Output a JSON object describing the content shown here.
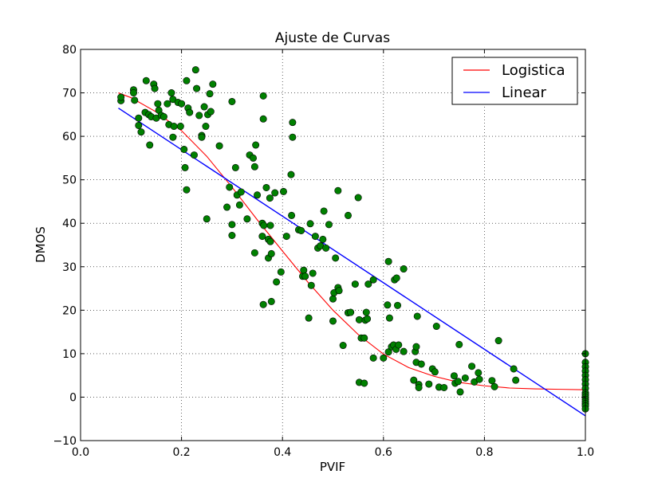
{
  "chart_data": {
    "type": "scatter",
    "title": "Ajuste de Curvas",
    "xlabel": "PVIF",
    "ylabel": "DMOS",
    "xlim": [
      0.0,
      1.0
    ],
    "ylim": [
      -10,
      80
    ],
    "xticks": [
      "0.0",
      "0.2",
      "0.4",
      "0.6",
      "0.8",
      "1.0"
    ],
    "yticks": [
      "−10",
      "0",
      "10",
      "20",
      "30",
      "40",
      "50",
      "60",
      "70",
      "80"
    ],
    "grid": true,
    "legend_position": "top-right",
    "colors": {
      "points": "#008000",
      "logistic": "#ff0000",
      "linear": "#0000ff"
    },
    "series": [
      {
        "name": "Logistica",
        "kind": "line",
        "x": [
          0.075,
          0.1,
          0.15,
          0.2,
          0.25,
          0.3,
          0.35,
          0.4,
          0.45,
          0.5,
          0.55,
          0.6,
          0.65,
          0.7,
          0.75,
          0.8,
          0.85,
          0.9,
          0.95,
          1.0
        ],
        "y": [
          70.0,
          68.9,
          65.6,
          61.3,
          55.4,
          48.3,
          40.8,
          33.6,
          26.5,
          20.0,
          14.4,
          9.9,
          6.8,
          4.8,
          3.4,
          2.6,
          2.1,
          1.9,
          1.8,
          1.7
        ]
      },
      {
        "name": "Linear",
        "kind": "line",
        "x": [
          0.075,
          1.0
        ],
        "y": [
          66.5,
          -4.3
        ]
      },
      {
        "name": "",
        "kind": "scatter",
        "points": [
          [
            0.08,
            68.2
          ],
          [
            0.08,
            69.0
          ],
          [
            0.105,
            70.7
          ],
          [
            0.105,
            70.0
          ],
          [
            0.107,
            68.3
          ],
          [
            0.115,
            64.2
          ],
          [
            0.115,
            62.5
          ],
          [
            0.12,
            61.0
          ],
          [
            0.13,
            72.8
          ],
          [
            0.128,
            65.5
          ],
          [
            0.135,
            65.0
          ],
          [
            0.137,
            58.0
          ],
          [
            0.14,
            64.5
          ],
          [
            0.145,
            72.0
          ],
          [
            0.147,
            71.0
          ],
          [
            0.15,
            64.2
          ],
          [
            0.153,
            67.5
          ],
          [
            0.155,
            66.0
          ],
          [
            0.16,
            64.8
          ],
          [
            0.165,
            64.5
          ],
          [
            0.172,
            67.5
          ],
          [
            0.175,
            62.7
          ],
          [
            0.18,
            70.0
          ],
          [
            0.183,
            68.5
          ],
          [
            0.183,
            59.8
          ],
          [
            0.185,
            62.3
          ],
          [
            0.193,
            67.8
          ],
          [
            0.198,
            62.3
          ],
          [
            0.2,
            67.5
          ],
          [
            0.205,
            57.0
          ],
          [
            0.207,
            52.8
          ],
          [
            0.21,
            72.8
          ],
          [
            0.21,
            47.7
          ],
          [
            0.213,
            66.5
          ],
          [
            0.216,
            65.5
          ],
          [
            0.225,
            55.7
          ],
          [
            0.228,
            75.3
          ],
          [
            0.23,
            71.0
          ],
          [
            0.235,
            64.8
          ],
          [
            0.24,
            60.2
          ],
          [
            0.24,
            59.8
          ],
          [
            0.245,
            66.8
          ],
          [
            0.248,
            62.3
          ],
          [
            0.25,
            41.0
          ],
          [
            0.252,
            65.0
          ],
          [
            0.256,
            69.8
          ],
          [
            0.258,
            65.7
          ],
          [
            0.262,
            72.0
          ],
          [
            0.275,
            57.8
          ],
          [
            0.29,
            43.7
          ],
          [
            0.295,
            48.3
          ],
          [
            0.3,
            68.0
          ],
          [
            0.3,
            39.7
          ],
          [
            0.3,
            37.2
          ],
          [
            0.307,
            52.8
          ],
          [
            0.31,
            46.5
          ],
          [
            0.315,
            44.2
          ],
          [
            0.318,
            47.2
          ],
          [
            0.33,
            41.0
          ],
          [
            0.335,
            55.7
          ],
          [
            0.342,
            55.0
          ],
          [
            0.345,
            53.0
          ],
          [
            0.347,
            58.0
          ],
          [
            0.345,
            33.2
          ],
          [
            0.35,
            46.5
          ],
          [
            0.36,
            40.0
          ],
          [
            0.362,
            69.3
          ],
          [
            0.362,
            64.0
          ],
          [
            0.363,
            39.5
          ],
          [
            0.36,
            37.0
          ],
          [
            0.362,
            21.3
          ],
          [
            0.368,
            48.2
          ],
          [
            0.372,
            36.3
          ],
          [
            0.372,
            32.0
          ],
          [
            0.375,
            45.8
          ],
          [
            0.376,
            39.5
          ],
          [
            0.376,
            35.8
          ],
          [
            0.378,
            33.0
          ],
          [
            0.378,
            22.0
          ],
          [
            0.385,
            47.0
          ],
          [
            0.388,
            26.5
          ],
          [
            0.397,
            28.8
          ],
          [
            0.402,
            47.3
          ],
          [
            0.408,
            37.0
          ],
          [
            0.417,
            51.2
          ],
          [
            0.418,
            41.8
          ],
          [
            0.42,
            63.2
          ],
          [
            0.42,
            59.8
          ],
          [
            0.432,
            38.5
          ],
          [
            0.437,
            38.3
          ],
          [
            0.44,
            27.8
          ],
          [
            0.442,
            29.2
          ],
          [
            0.445,
            27.8
          ],
          [
            0.452,
            18.2
          ],
          [
            0.455,
            39.9
          ],
          [
            0.457,
            25.7
          ],
          [
            0.46,
            28.5
          ],
          [
            0.465,
            37.0
          ],
          [
            0.47,
            34.3
          ],
          [
            0.475,
            34.8
          ],
          [
            0.48,
            36.3
          ],
          [
            0.482,
            42.8
          ],
          [
            0.486,
            34.3
          ],
          [
            0.492,
            39.7
          ],
          [
            0.5,
            22.6
          ],
          [
            0.5,
            17.5
          ],
          [
            0.502,
            24.0
          ],
          [
            0.505,
            32.0
          ],
          [
            0.51,
            47.5
          ],
          [
            0.51,
            25.2
          ],
          [
            0.512,
            24.5
          ],
          [
            0.52,
            11.9
          ],
          [
            0.53,
            19.4
          ],
          [
            0.53,
            41.8
          ],
          [
            0.535,
            19.5
          ],
          [
            0.544,
            26.0
          ],
          [
            0.55,
            45.9
          ],
          [
            0.552,
            17.8
          ],
          [
            0.552,
            3.4
          ],
          [
            0.556,
            13.6
          ],
          [
            0.562,
            13.6
          ],
          [
            0.562,
            3.2
          ],
          [
            0.564,
            17.7
          ],
          [
            0.566,
            19.5
          ],
          [
            0.568,
            18.0
          ],
          [
            0.57,
            26.0
          ],
          [
            0.58,
            27.0
          ],
          [
            0.58,
            9.0
          ],
          [
            0.6,
            9.0
          ],
          [
            0.608,
            21.2
          ],
          [
            0.61,
            31.2
          ],
          [
            0.61,
            10.4
          ],
          [
            0.612,
            18.2
          ],
          [
            0.616,
            11.6
          ],
          [
            0.62,
            12.0
          ],
          [
            0.622,
            27.0
          ],
          [
            0.625,
            11.0
          ],
          [
            0.626,
            27.4
          ],
          [
            0.628,
            21.1
          ],
          [
            0.63,
            12.0
          ],
          [
            0.64,
            29.5
          ],
          [
            0.64,
            10.5
          ],
          [
            0.66,
            3.9
          ],
          [
            0.663,
            10.5
          ],
          [
            0.665,
            11.6
          ],
          [
            0.665,
            8.0
          ],
          [
            0.667,
            18.6
          ],
          [
            0.67,
            2.9
          ],
          [
            0.67,
            2.2
          ],
          [
            0.675,
            7.6
          ],
          [
            0.69,
            3.0
          ],
          [
            0.697,
            6.5
          ],
          [
            0.702,
            5.8
          ],
          [
            0.705,
            16.3
          ],
          [
            0.71,
            2.3
          ],
          [
            0.72,
            2.2
          ],
          [
            0.74,
            4.9
          ],
          [
            0.742,
            3.2
          ],
          [
            0.748,
            3.6
          ],
          [
            0.75,
            12.1
          ],
          [
            0.752,
            1.2
          ],
          [
            0.762,
            4.4
          ],
          [
            0.775,
            7.1
          ],
          [
            0.78,
            3.5
          ],
          [
            0.788,
            5.6
          ],
          [
            0.79,
            4.1
          ],
          [
            0.815,
            3.8
          ],
          [
            0.82,
            2.4
          ],
          [
            0.828,
            13.0
          ],
          [
            0.858,
            6.5
          ],
          [
            0.862,
            3.9
          ],
          [
            1.0,
            10.0
          ],
          [
            1.0,
            8.0
          ],
          [
            1.0,
            7.0
          ],
          [
            1.0,
            6.0
          ],
          [
            1.0,
            5.0
          ],
          [
            1.0,
            4.0
          ],
          [
            1.0,
            3.0
          ],
          [
            1.0,
            2.0
          ],
          [
            1.0,
            1.0
          ],
          [
            1.0,
            0.5
          ],
          [
            1.0,
            0.0
          ],
          [
            1.0,
            -0.5
          ],
          [
            1.0,
            -1.0
          ],
          [
            1.0,
            -1.5
          ],
          [
            1.0,
            -2.0
          ],
          [
            1.0,
            -2.7
          ]
        ]
      }
    ]
  }
}
